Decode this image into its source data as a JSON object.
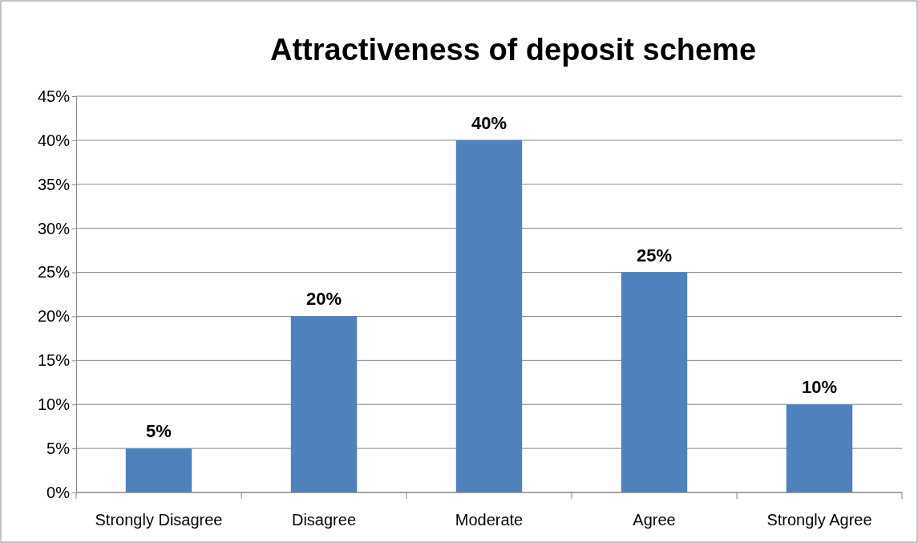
{
  "chart_data": {
    "type": "bar",
    "title": "Attractiveness of deposit scheme",
    "categories": [
      "Strongly Disagree",
      "Disagree",
      "Moderate",
      "Agree",
      "Strongly Agree"
    ],
    "values": [
      5,
      20,
      40,
      25,
      10
    ],
    "value_labels": [
      "5%",
      "20%",
      "40%",
      "25%",
      "10%"
    ],
    "color": "#4f81bd",
    "ylim": [
      0,
      45
    ],
    "yticks": [
      {
        "value": 0,
        "label": "0%"
      },
      {
        "value": 5,
        "label": "5%"
      },
      {
        "value": 10,
        "label": "10%"
      },
      {
        "value": 15,
        "label": "15%"
      },
      {
        "value": 20,
        "label": "20%"
      },
      {
        "value": 25,
        "label": "25%"
      },
      {
        "value": 30,
        "label": "30%"
      },
      {
        "value": 35,
        "label": "35%"
      },
      {
        "value": 40,
        "label": "40%"
      },
      {
        "value": 45,
        "label": "45%"
      }
    ],
    "grid": "y"
  }
}
